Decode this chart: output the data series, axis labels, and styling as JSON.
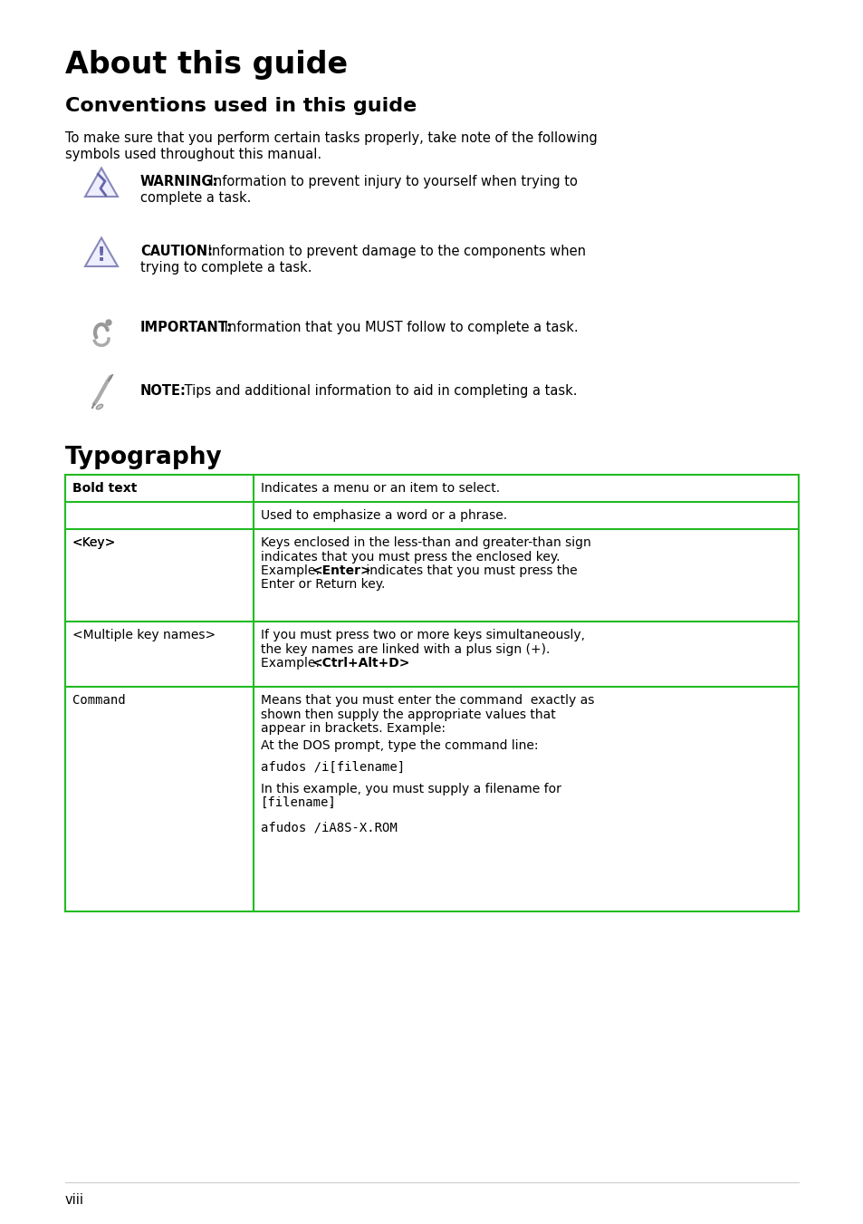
{
  "title": "About this guide",
  "subtitle": "Conventions used in this guide",
  "intro_text_line1": "To make sure that you perform certain tasks properly, take note of the following",
  "intro_text_line2": "symbols used throughout this manual.",
  "warning_label": "WARNING:",
  "warning_text1": " Information to prevent injury to yourself when trying to",
  "warning_text2": "complete a task.",
  "caution_label": "CAUTION:",
  "caution_text1": " Information to prevent damage to the components when",
  "caution_text2": "trying to complete a task.",
  "important_label": "IMPORTANT:",
  "important_text": " Information that you MUST follow to complete a task.",
  "note_label": "NOTE:",
  "note_text": " Tips and additional information to aid in completing a task.",
  "typography_title": "Typography",
  "page_number": "viii",
  "bg_color": "#ffffff",
  "text_color": "#000000",
  "table_border_color": "#22bb22",
  "icon_tri_fill": "#eeeeff",
  "icon_tri_edge": "#8888bb",
  "icon_bolt_color": "#6666aa"
}
